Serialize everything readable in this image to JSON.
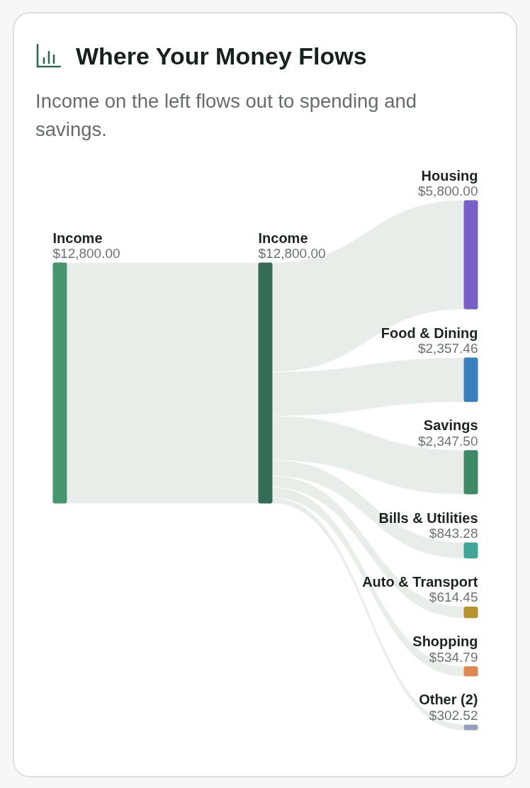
{
  "chart_data": {
    "type": "other",
    "title": "Where Your Money Flows",
    "subtitle": "Income on the left flows out to spending and savings.",
    "categories": [
      "Income",
      "Income",
      "Housing",
      "Food & Dining",
      "Savings",
      "Bills & Utilities",
      "Auto & Transport",
      "Shopping",
      "Other (2)"
    ],
    "values": [
      12800,
      12800,
      5800,
      2357.46,
      2347.5,
      843.28,
      614.45,
      534.79,
      302.52
    ],
    "value_labels": [
      "$12,800.00",
      "$12,800.00",
      "$5,800.00",
      "$2,357.46",
      "$2,347.50",
      "$843.28",
      "$614.45",
      "$534.79",
      "$302.52"
    ],
    "colors": [
      "#45956f",
      "#346c57",
      "#7860c8",
      "#3a7fbe",
      "#3f8967",
      "#3fa699",
      "#b7932f",
      "#df8753",
      "#95a1bb"
    ],
    "color": "#e7ece8"
  }
}
